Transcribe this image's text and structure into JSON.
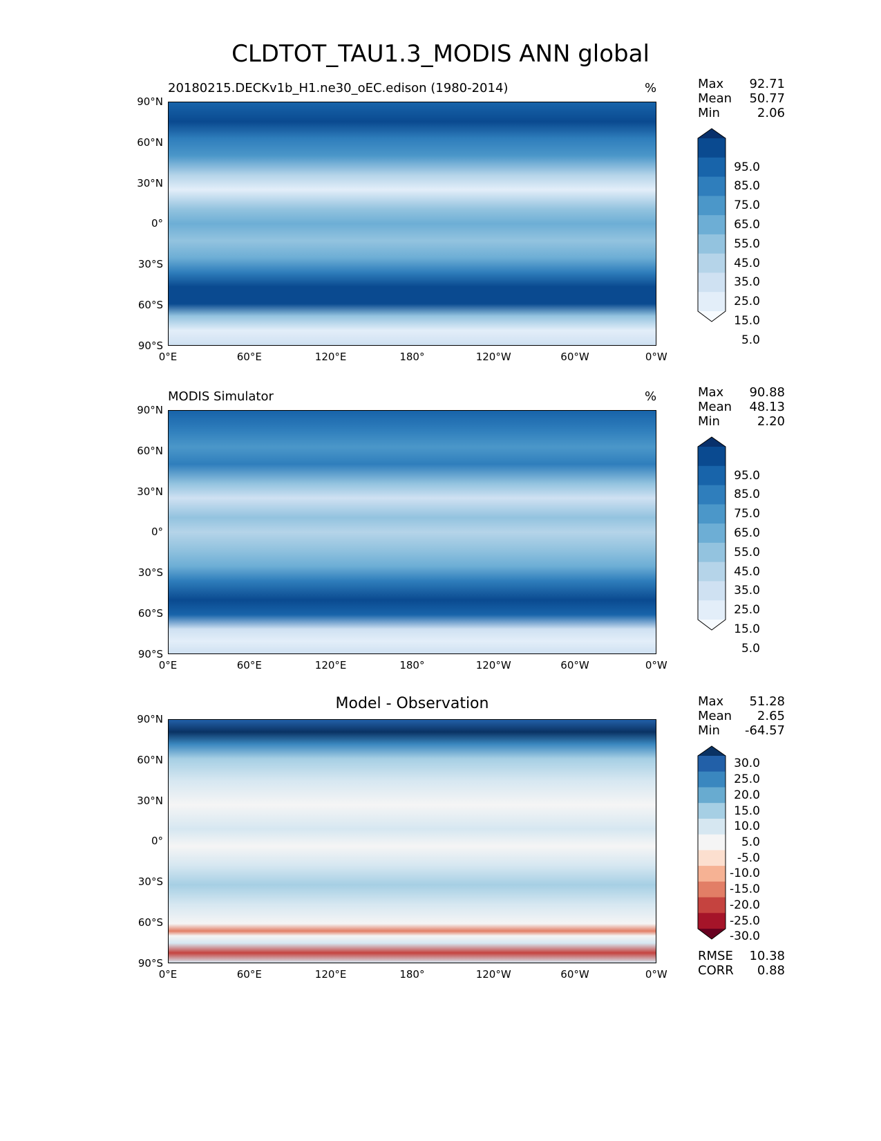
{
  "chart_data": {
    "type": "heatmap",
    "title": "CLDTOT_TAU1.3_MODIS ANN global",
    "xticks": [
      "0°E",
      "60°E",
      "120°E",
      "180°",
      "120°W",
      "60°W",
      "0°W"
    ],
    "yticks": [
      "90°N",
      "60°N",
      "30°N",
      "0°",
      "30°S",
      "60°S",
      "90°S"
    ],
    "panels": [
      {
        "title": "20180215.DECKv1b_H1.ne30_oEC.edison (1980-2014)",
        "units": "%",
        "stats": [
          [
            "Max",
            "92.71"
          ],
          [
            "Mean",
            "50.77"
          ],
          [
            "Min",
            "2.06"
          ]
        ],
        "colorbar_labels": [
          "95.0",
          "85.0",
          "75.0",
          "65.0",
          "55.0",
          "45.0",
          "35.0",
          "25.0",
          "15.0",
          "5.0"
        ],
        "colors": [
          "#08306b",
          "#0a4a90",
          "#1864aa",
          "#2f7ebc",
          "#4b97c9",
          "#6daed5",
          "#93c3df",
          "#b5d4e9",
          "#cfe1f2",
          "#e3eef9",
          "#f7fbff"
        ]
      },
      {
        "title": "MODIS Simulator",
        "units": "%",
        "stats": [
          [
            "Max",
            "90.88"
          ],
          [
            "Mean",
            "48.13"
          ],
          [
            "Min",
            "2.20"
          ]
        ],
        "colorbar_labels": [
          "95.0",
          "85.0",
          "75.0",
          "65.0",
          "55.0",
          "45.0",
          "35.0",
          "25.0",
          "15.0",
          "5.0"
        ],
        "colors": [
          "#08306b",
          "#0a4a90",
          "#1864aa",
          "#2f7ebc",
          "#4b97c9",
          "#6daed5",
          "#93c3df",
          "#b5d4e9",
          "#cfe1f2",
          "#e3eef9",
          "#f7fbff"
        ]
      },
      {
        "title": "Model - Observation",
        "units": "",
        "stats": [
          [
            "Max",
            "51.28"
          ],
          [
            "Mean",
            "2.65"
          ],
          [
            "Min",
            "-64.57"
          ]
        ],
        "colorbar_labels": [
          "30.0",
          "25.0",
          "20.0",
          "15.0",
          "10.0",
          "5.0",
          "-5.0",
          "-10.0",
          "-15.0",
          "-20.0",
          "-25.0",
          "-30.0"
        ],
        "colors": [
          "#0a3263",
          "#2260a8",
          "#3a87bf",
          "#68abd0",
          "#a6cfe4",
          "#d6e7f1",
          "#f5f5f5",
          "#fcdfcf",
          "#f6b294",
          "#e27e66",
          "#c5433f",
          "#a51429",
          "#67001f"
        ],
        "metrics": [
          [
            "RMSE",
            "10.38"
          ],
          [
            "CORR",
            "0.88"
          ]
        ]
      }
    ]
  }
}
